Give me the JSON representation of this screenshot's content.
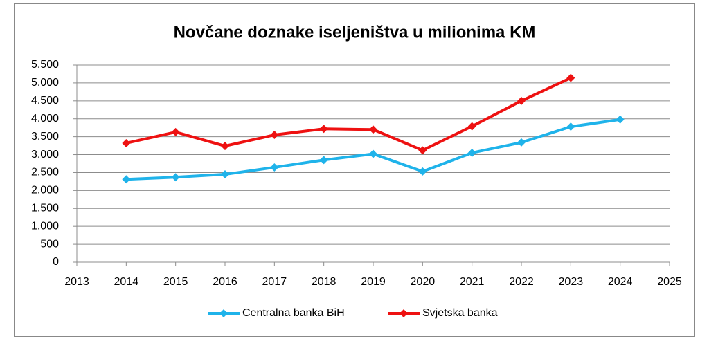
{
  "chart_data": {
    "type": "line",
    "title": "Novčane doznake iseljeništva u milionima KM",
    "x": [
      2014,
      2015,
      2016,
      2017,
      2018,
      2019,
      2020,
      2021,
      2022,
      2023,
      2024
    ],
    "series": [
      {
        "name": "Centralna banka BiH",
        "color": "#1fb3ea",
        "values": [
          2310,
          2370,
          2450,
          2645,
          2850,
          3020,
          2530,
          3050,
          3340,
          3780,
          3980
        ]
      },
      {
        "name": "Svjetska banka",
        "color": "#ee1111",
        "values": [
          3320,
          3630,
          3240,
          3550,
          3720,
          3700,
          3120,
          3790,
          4500,
          5140,
          null
        ]
      }
    ],
    "xlim": [
      2013,
      2025
    ],
    "xticks": [
      2013,
      2014,
      2015,
      2016,
      2017,
      2018,
      2019,
      2020,
      2021,
      2022,
      2023,
      2024,
      2025
    ],
    "ylim": [
      0,
      5500
    ],
    "yticks": [
      0,
      500,
      {
        "value": 1000,
        "label": "1.000"
      },
      {
        "value": 1500,
        "label": "1.500"
      },
      {
        "value": 2000,
        "label": "2.000"
      },
      {
        "value": 2500,
        "label": "2.500"
      },
      {
        "value": 3000,
        "label": "3.000"
      },
      {
        "value": 3500,
        "label": "3.500"
      },
      {
        "value": 4000,
        "label": "4.000"
      },
      {
        "value": 4500,
        "label": "4.500"
      },
      {
        "value": 5000,
        "label": "5.000"
      },
      {
        "value": 5500,
        "label": "5.500"
      }
    ],
    "grid": true,
    "legend": "bottom"
  }
}
